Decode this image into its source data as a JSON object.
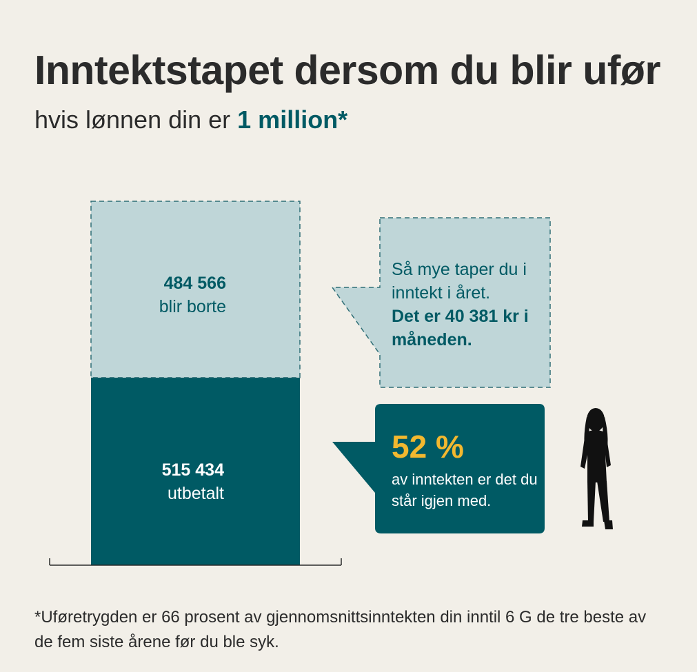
{
  "title": "Inntektstapet dersom du blir ufør",
  "subtitle": {
    "prefix": "hvis lønnen din er ",
    "highlight": "1 million*"
  },
  "chart_data": {
    "type": "bar",
    "categories": [
      ""
    ],
    "series": [
      {
        "name": "",
        "values": [
          515434
        ]
      },
      {
        "name": "",
        "values": [
          484566
        ]
      }
    ],
    "ylim": [
      0,
      1000000
    ],
    "labels": {
      "lost_value": "484 566",
      "lost_text": "blir borte",
      "paid_value": "515 434",
      "paid_text": "utbetalt"
    },
    "colors": {
      "paid": "#005a64",
      "lost": "#bfd6d8",
      "lost_border": "#2f6e76"
    }
  },
  "callouts": {
    "loss": {
      "text": "Så mye taper du i inntekt i året.",
      "bold": "Det er 40 381 kr i måneden."
    },
    "remaining": {
      "percent": "52 %",
      "text": "av inntekten er det du står igjen med."
    }
  },
  "icons": {
    "person": "person-silhouette-icon"
  },
  "footnote": "*Uføretrygden er 66 prosent av gjennomsnittsinntekten din inntil 6 G de tre beste av de fem siste årene før du ble syk."
}
